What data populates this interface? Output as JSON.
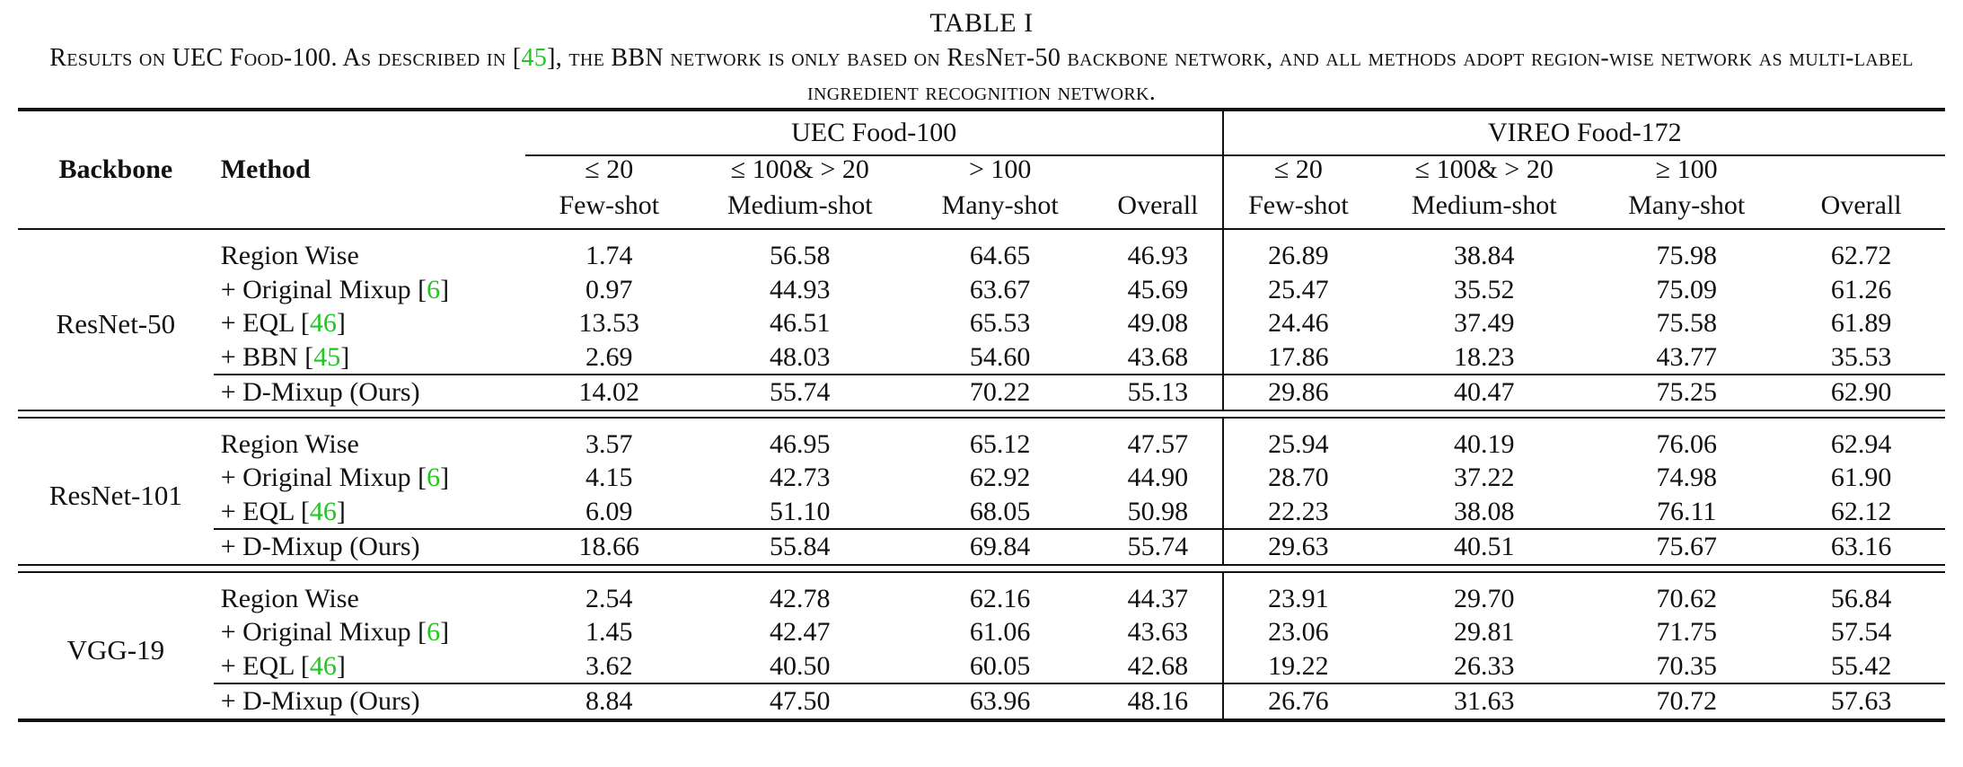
{
  "title": "TABLE I",
  "caption": {
    "part1": "Results on UEC Food-100. As described in [",
    "ref": "45",
    "part2": "], the BBN network is only based on ResNet-50 backbone network, and all methods adopt region-wise network as multi-label ingredient recognition network."
  },
  "headers": {
    "backbone": "Backbone",
    "method": "Method",
    "group1": "UEC Food-100",
    "group2": "VIREO Food-172",
    "conditions": [
      "≤ 20",
      "≤ 100& > 20",
      "> 100",
      "",
      "≤ 20",
      "≤ 100& > 20",
      "≥ 100",
      ""
    ],
    "shots": [
      "Few-shot",
      "Medium-shot",
      "Many-shot",
      "Overall",
      "Few-shot",
      "Medium-shot",
      "Many-shot",
      "Overall"
    ]
  },
  "sections": [
    {
      "backbone": "ResNet-50",
      "rows": [
        {
          "method": "Region Wise",
          "ref": "",
          "values": [
            "1.74",
            "56.58",
            "64.65",
            "46.93",
            "26.89",
            "38.84",
            "75.98",
            "62.72"
          ],
          "bold": [
            false,
            true,
            false,
            false,
            false,
            false,
            true,
            false
          ]
        },
        {
          "method": "+ Original Mixup [",
          "ref": "6",
          "values": [
            "0.97",
            "44.93",
            "63.67",
            "45.69",
            "25.47",
            "35.52",
            "75.09",
            "61.26"
          ],
          "bold": [
            false,
            false,
            false,
            false,
            false,
            false,
            false,
            false
          ]
        },
        {
          "method": "+ EQL [",
          "ref": "46",
          "values": [
            "13.53",
            "46.51",
            "65.53",
            "49.08",
            "24.46",
            "37.49",
            "75.58",
            "61.89"
          ],
          "bold": [
            false,
            false,
            false,
            false,
            false,
            false,
            false,
            false
          ]
        },
        {
          "method": "+ BBN [",
          "ref": "45",
          "values": [
            "2.69",
            "48.03",
            "54.60",
            "43.68",
            "17.86",
            "18.23",
            "43.77",
            "35.53"
          ],
          "bold": [
            false,
            false,
            false,
            false,
            false,
            false,
            false,
            false
          ]
        }
      ],
      "ours": {
        "method": "+ D-Mixup (Ours)",
        "values": [
          "14.02",
          "55.74",
          "70.22",
          "55.13",
          "29.86",
          "40.47",
          "75.25",
          "62.90"
        ],
        "bold": [
          true,
          false,
          true,
          true,
          true,
          true,
          false,
          true
        ]
      }
    },
    {
      "backbone": "ResNet-101",
      "rows": [
        {
          "method": "Region Wise",
          "ref": "",
          "values": [
            "3.57",
            "46.95",
            "65.12",
            "47.57",
            "25.94",
            "40.19",
            "76.06",
            "62.94"
          ],
          "bold": [
            false,
            false,
            false,
            false,
            false,
            false,
            false,
            false
          ]
        },
        {
          "method": "+ Original Mixup [",
          "ref": "6",
          "values": [
            "4.15",
            "42.73",
            "62.92",
            "44.90",
            "28.70",
            "37.22",
            "74.98",
            "61.90"
          ],
          "bold": [
            false,
            false,
            false,
            false,
            false,
            false,
            false,
            false
          ]
        },
        {
          "method": "+ EQL [",
          "ref": "46",
          "values": [
            "6.09",
            "51.10",
            "68.05",
            "50.98",
            "22.23",
            "38.08",
            "76.11",
            "62.12"
          ],
          "bold": [
            false,
            false,
            false,
            false,
            false,
            false,
            true,
            false
          ]
        }
      ],
      "ours": {
        "method": "+ D-Mixup (Ours)",
        "values": [
          "18.66",
          "55.84",
          "69.84",
          "55.74",
          "29.63",
          "40.51",
          "75.67",
          "63.16"
        ],
        "bold": [
          true,
          true,
          true,
          true,
          true,
          true,
          false,
          true
        ]
      }
    },
    {
      "backbone": "VGG-19",
      "rows": [
        {
          "method": "Region Wise",
          "ref": "",
          "values": [
            "2.54",
            "42.78",
            "62.16",
            "44.37",
            "23.91",
            "29.70",
            "70.62",
            "56.84"
          ],
          "bold": [
            false,
            false,
            false,
            false,
            false,
            false,
            false,
            false
          ]
        },
        {
          "method": "+ Original Mixup [",
          "ref": "6",
          "values": [
            "1.45",
            "42.47",
            "61.06",
            "43.63",
            "23.06",
            "29.81",
            "71.75",
            "57.54"
          ],
          "bold": [
            false,
            false,
            false,
            false,
            false,
            false,
            true,
            false
          ]
        },
        {
          "method": "+ EQL [",
          "ref": "46",
          "values": [
            "3.62",
            "40.50",
            "60.05",
            "42.68",
            "19.22",
            "26.33",
            "70.35",
            "55.42"
          ],
          "bold": [
            false,
            false,
            false,
            false,
            false,
            false,
            false,
            false
          ]
        }
      ],
      "ours": {
        "method": "+ D-Mixup (Ours)",
        "values": [
          "8.84",
          "47.50",
          "63.96",
          "48.16",
          "26.76",
          "31.63",
          "70.72",
          "57.63"
        ],
        "bold": [
          true,
          true,
          true,
          true,
          true,
          true,
          false,
          true
        ]
      }
    }
  ]
}
